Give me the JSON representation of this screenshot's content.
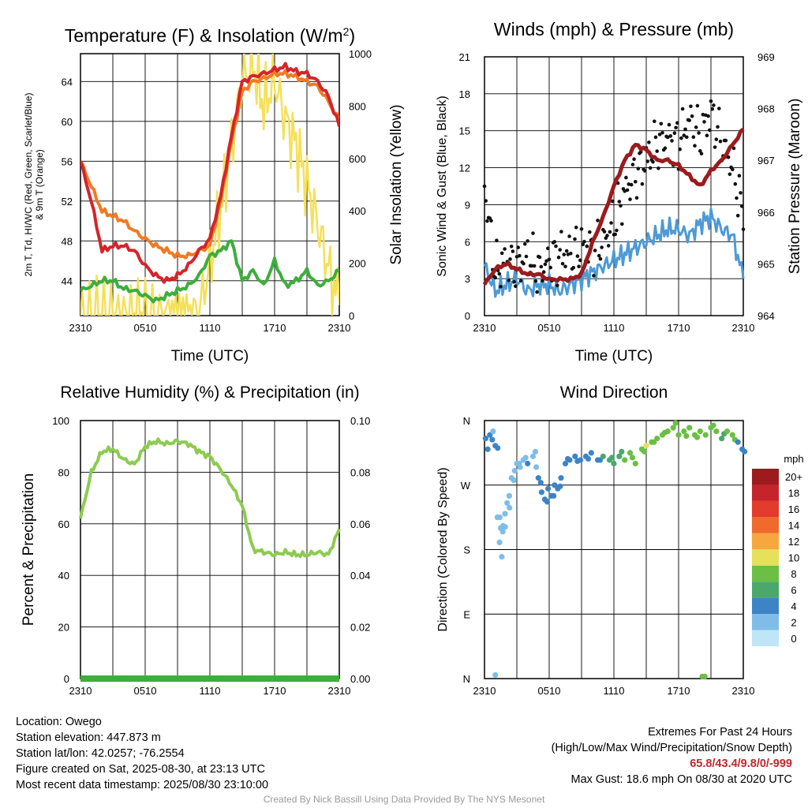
{
  "chart_data": [
    {
      "type": "line",
      "title": "Temperature (F) & Insolation (W/m",
      "title_superscript": "2",
      "title_suffix": ")",
      "ylabel_left": "2m T, Td, HI/WC (Red, Green, Scarlet/Blue)",
      "ylabel_left_line2": "& 9m T (Orange)",
      "ylabel_right": "Solar Insolation (Yellow)",
      "xlabel": "Time (UTC)",
      "x_ticks": [
        "2310",
        "0510",
        "1110",
        "1710",
        "2310"
      ],
      "x_range_hours": [
        0,
        24
      ],
      "y_left_ticks": [
        44,
        48,
        52,
        56,
        60,
        64
      ],
      "y_left_range": [
        40.5,
        66.8
      ],
      "y_right_ticks": [
        0,
        200,
        400,
        600,
        800,
        1000
      ],
      "y_right_range": [
        0,
        1000
      ],
      "x_hours": [
        0,
        1,
        2,
        3,
        4,
        5,
        6,
        7,
        8,
        9,
        10,
        11,
        12,
        13,
        14,
        15,
        16,
        17,
        18,
        19,
        20,
        21,
        22,
        23,
        24
      ],
      "series": [
        {
          "name": "9m T",
          "color": "#f07a24",
          "axis": "left",
          "values": [
            56.0,
            53.5,
            51.0,
            50.5,
            50.0,
            49.0,
            48.2,
            47.5,
            47.0,
            46.5,
            46.5,
            47.0,
            47.5,
            52.0,
            58.0,
            63.0,
            64.0,
            64.3,
            64.8,
            64.8,
            64.5,
            64.0,
            63.5,
            62.0,
            60.0
          ]
        },
        {
          "name": "2m T",
          "color": "#d4242a",
          "axis": "left",
          "values": [
            56.0,
            52.0,
            47.0,
            47.5,
            47.5,
            47.0,
            45.5,
            44.5,
            44.0,
            44.5,
            45.5,
            47.0,
            48.2,
            52.5,
            58.5,
            64.0,
            64.5,
            64.8,
            65.2,
            65.5,
            65.0,
            64.8,
            64.0,
            62.5,
            59.5
          ]
        },
        {
          "name": "2m Td",
          "color": "#3cae3c",
          "axis": "left",
          "values": [
            43.0,
            43.5,
            44.0,
            44.0,
            43.2,
            43.0,
            42.5,
            42.0,
            42.5,
            43.0,
            43.5,
            44.5,
            46.5,
            47.0,
            48.0,
            44.0,
            45.0,
            43.5,
            46.0,
            43.5,
            44.0,
            45.0,
            43.5,
            44.0,
            45.0
          ]
        },
        {
          "name": "Solar Insolation",
          "color": "#f5e05a",
          "axis": "right",
          "values": [
            0,
            0,
            0,
            0,
            0,
            0,
            0,
            0,
            0,
            0,
            0,
            10,
            200,
            400,
            650,
            900,
            960,
            800,
            900,
            750,
            650,
            500,
            350,
            180,
            40
          ]
        }
      ]
    },
    {
      "type": "line",
      "title": "Winds (mph) & Pressure (mb)",
      "ylabel_left": "Sonic Wind & Gust (Blue, Black)",
      "ylabel_right": "Station Pressure (Maroon)",
      "xlabel": "Time (UTC)",
      "x_ticks": [
        "2310",
        "0510",
        "1110",
        "1710",
        "2310"
      ],
      "y_left_ticks": [
        0,
        3,
        6,
        9,
        12,
        15,
        18,
        21
      ],
      "y_left_range": [
        0,
        21
      ],
      "y_right_ticks": [
        964,
        965,
        966,
        967,
        968,
        969
      ],
      "y_right_range": [
        964,
        969
      ],
      "x_hours": [
        0,
        1,
        2,
        3,
        4,
        5,
        6,
        7,
        8,
        9,
        10,
        11,
        12,
        13,
        14,
        15,
        16,
        17,
        18,
        19,
        20,
        21,
        22,
        23,
        24
      ],
      "series": [
        {
          "name": "Sonic Wind",
          "color": "#4d9ad6",
          "axis": "left",
          "values": [
            4.0,
            2.0,
            2.5,
            3.0,
            2.0,
            2.5,
            2.5,
            2.0,
            2.5,
            3.0,
            3.5,
            4.0,
            4.5,
            5.0,
            5.5,
            6.0,
            6.5,
            7.0,
            7.0,
            6.5,
            7.5,
            8.0,
            7.0,
            6.5,
            3.0
          ]
        },
        {
          "name": "Gust",
          "color": "#111111",
          "axis": "left",
          "style": "dots",
          "values": [
            10.5,
            3.5,
            4.5,
            4.0,
            5.0,
            3.5,
            4.5,
            5.0,
            5.0,
            5.5,
            5.5,
            6.0,
            7.5,
            10.0,
            11.5,
            12.5,
            14.0,
            14.5,
            14.0,
            16.0,
            14.5,
            16.5,
            14.0,
            12.0,
            8.0
          ]
        },
        {
          "name": "Station Pressure",
          "color": "#9b1b1e",
          "axis": "right",
          "values": [
            964.6,
            964.9,
            965.0,
            964.9,
            964.8,
            964.8,
            964.7,
            964.7,
            964.7,
            964.8,
            965.4,
            965.9,
            966.5,
            967.0,
            967.3,
            967.2,
            967.0,
            967.0,
            966.9,
            966.7,
            966.5,
            966.8,
            967.0,
            967.3,
            967.6
          ]
        }
      ]
    },
    {
      "type": "line",
      "title": "Relative Humidity (%) & Precipitation (in)",
      "ylabel_left": "Percent & Precipitation",
      "x_ticks": [
        "2310",
        "0510",
        "1110",
        "1710",
        "2310"
      ],
      "y_left_ticks": [
        0,
        20,
        40,
        60,
        80,
        100
      ],
      "y_left_range": [
        0,
        100
      ],
      "y_right_ticks": [
        "0.00",
        "0.02",
        "0.04",
        "0.06",
        "0.08",
        "0.10"
      ],
      "y_right_range": [
        0,
        0.1
      ],
      "x_hours": [
        0,
        1,
        2,
        3,
        4,
        5,
        6,
        7,
        8,
        9,
        10,
        11,
        12,
        13,
        14,
        15,
        16,
        17,
        18,
        19,
        20,
        21,
        22,
        23,
        24
      ],
      "series": [
        {
          "name": "Relative Humidity",
          "color": "#8ccb4f",
          "axis": "left",
          "values": [
            62,
            80,
            88,
            89,
            85,
            83,
            90,
            92,
            91,
            92,
            91,
            88,
            86,
            81,
            75,
            67,
            50,
            49,
            48,
            49,
            48,
            48,
            49,
            48,
            58
          ]
        },
        {
          "name": "Precipitation",
          "color": "#3cae3c",
          "axis": "right",
          "values": [
            0,
            0,
            0,
            0,
            0,
            0,
            0,
            0,
            0,
            0,
            0,
            0,
            0,
            0,
            0,
            0,
            0,
            0,
            0,
            0,
            0,
            0,
            0,
            0,
            0
          ]
        }
      ]
    },
    {
      "type": "scatter",
      "title": "Wind Direction",
      "ylabel_left": "Direction (Colored By Speed)",
      "x_ticks": [
        "2310",
        "0510",
        "1110",
        "1710",
        "2310"
      ],
      "y_ticks": [
        "N",
        "E",
        "S",
        "W",
        "N"
      ],
      "y_range_degrees": [
        0,
        360
      ],
      "colorbar_title": "mph",
      "colorbar_labels": [
        "0",
        "2",
        "4",
        "6",
        "8",
        "10",
        "12",
        "14",
        "16",
        "18",
        "20+"
      ],
      "colorbar_colors": [
        "#bfe6f7",
        "#7fbde8",
        "#3d84c6",
        "#4aa86d",
        "#6bbf44",
        "#e6e05a",
        "#f6a83e",
        "#ef6a2c",
        "#e33b2c",
        "#c4242a",
        "#9d1b1e"
      ],
      "points": [
        {
          "h": 0.1,
          "dir": 335,
          "speed": 3
        },
        {
          "h": 0.3,
          "dir": 320,
          "speed": 4
        },
        {
          "h": 0.5,
          "dir": 340,
          "speed": 3
        },
        {
          "h": 0.8,
          "dir": 345,
          "speed": 2
        },
        {
          "h": 1.0,
          "dir": 325,
          "speed": 3
        },
        {
          "h": 1.0,
          "dir": 5,
          "speed": 2
        },
        {
          "h": 1.2,
          "dir": 225,
          "speed": 1
        },
        {
          "h": 1.4,
          "dir": 190,
          "speed": 1
        },
        {
          "h": 1.5,
          "dir": 210,
          "speed": 2
        },
        {
          "h": 1.6,
          "dir": 170,
          "speed": 1
        },
        {
          "h": 1.7,
          "dir": 205,
          "speed": 2
        },
        {
          "h": 1.9,
          "dir": 230,
          "speed": 2
        },
        {
          "h": 2.1,
          "dir": 245,
          "speed": 2
        },
        {
          "h": 2.3,
          "dir": 255,
          "speed": 2
        },
        {
          "h": 2.5,
          "dir": 280,
          "speed": 2
        },
        {
          "h": 2.8,
          "dir": 290,
          "speed": 2
        },
        {
          "h": 3.0,
          "dir": 300,
          "speed": 2
        },
        {
          "h": 3.3,
          "dir": 295,
          "speed": 2
        },
        {
          "h": 3.6,
          "dir": 305,
          "speed": 2
        },
        {
          "h": 4.0,
          "dir": 300,
          "speed": 3
        },
        {
          "h": 4.5,
          "dir": 310,
          "speed": 2
        },
        {
          "h": 4.8,
          "dir": 295,
          "speed": 2
        },
        {
          "h": 5.0,
          "dir": 280,
          "speed": 3
        },
        {
          "h": 5.3,
          "dir": 260,
          "speed": 3
        },
        {
          "h": 5.6,
          "dir": 250,
          "speed": 3
        },
        {
          "h": 5.9,
          "dir": 265,
          "speed": 3
        },
        {
          "h": 6.2,
          "dir": 255,
          "speed": 3
        },
        {
          "h": 6.5,
          "dir": 270,
          "speed": 3
        },
        {
          "h": 6.8,
          "dir": 265,
          "speed": 3
        },
        {
          "h": 7.1,
          "dir": 280,
          "speed": 3
        },
        {
          "h": 7.5,
          "dir": 300,
          "speed": 3
        },
        {
          "h": 7.9,
          "dir": 305,
          "speed": 4
        },
        {
          "h": 8.4,
          "dir": 310,
          "speed": 4
        },
        {
          "h": 8.9,
          "dir": 305,
          "speed": 4
        },
        {
          "h": 9.4,
          "dir": 310,
          "speed": 4
        },
        {
          "h": 9.9,
          "dir": 315,
          "speed": 4
        },
        {
          "h": 10.5,
          "dir": 305,
          "speed": 4
        },
        {
          "h": 11.0,
          "dir": 310,
          "speed": 5
        },
        {
          "h": 11.6,
          "dir": 305,
          "speed": 6
        },
        {
          "h": 12.0,
          "dir": 300,
          "speed": 6
        },
        {
          "h": 12.5,
          "dir": 310,
          "speed": 6
        },
        {
          "h": 13.0,
          "dir": 305,
          "speed": 7
        },
        {
          "h": 13.5,
          "dir": 315,
          "speed": 7
        },
        {
          "h": 14.0,
          "dir": 300,
          "speed": 8
        },
        {
          "h": 14.6,
          "dir": 320,
          "speed": 8
        },
        {
          "h": 15.0,
          "dir": 325,
          "speed": 9
        },
        {
          "h": 15.5,
          "dir": 330,
          "speed": 7
        },
        {
          "h": 16.0,
          "dir": 335,
          "speed": 7
        },
        {
          "h": 16.5,
          "dir": 340,
          "speed": 8
        },
        {
          "h": 17.0,
          "dir": 345,
          "speed": 7
        },
        {
          "h": 17.5,
          "dir": 350,
          "speed": 7
        },
        {
          "h": 18.0,
          "dir": 340,
          "speed": 7
        },
        {
          "h": 18.5,
          "dir": 345,
          "speed": 8
        },
        {
          "h": 19.0,
          "dir": 350,
          "speed": 7
        },
        {
          "h": 19.5,
          "dir": 340,
          "speed": 8
        },
        {
          "h": 20.0,
          "dir": 345,
          "speed": 7
        },
        {
          "h": 20.2,
          "dir": 3,
          "speed": 7
        },
        {
          "h": 20.5,
          "dir": 340,
          "speed": 8
        },
        {
          "h": 21.0,
          "dir": 350,
          "speed": 7
        },
        {
          "h": 21.5,
          "dir": 345,
          "speed": 7
        },
        {
          "h": 22.0,
          "dir": 335,
          "speed": 6
        },
        {
          "h": 22.5,
          "dir": 345,
          "speed": 7
        },
        {
          "h": 23.0,
          "dir": 340,
          "speed": 7
        },
        {
          "h": 23.5,
          "dir": 330,
          "speed": 4
        },
        {
          "h": 23.9,
          "dir": 320,
          "speed": 3
        }
      ]
    }
  ],
  "info": {
    "location": "Location: Owego",
    "elevation": "Station elevation: 447.873 m",
    "latlon": "Station lat/lon: 42.0257; -76.2554",
    "created": "Figure created on Sat, 2025-08-30, at 23:13 UTC",
    "recent": "Most recent data timestamp: 2025/08/30 23:10:00"
  },
  "extremes": {
    "title": "Extremes For Past 24 Hours",
    "subtitle": "(High/Low/Max Wind/Precipitation/Snow Depth)",
    "values": "65.8/43.4/9.8/0/-999",
    "gust": "Max Gust: 18.6 mph On 08/30 at 2020 UTC"
  },
  "footer": "Created By Nick Bassill Using Data Provided By The NYS Mesonet"
}
